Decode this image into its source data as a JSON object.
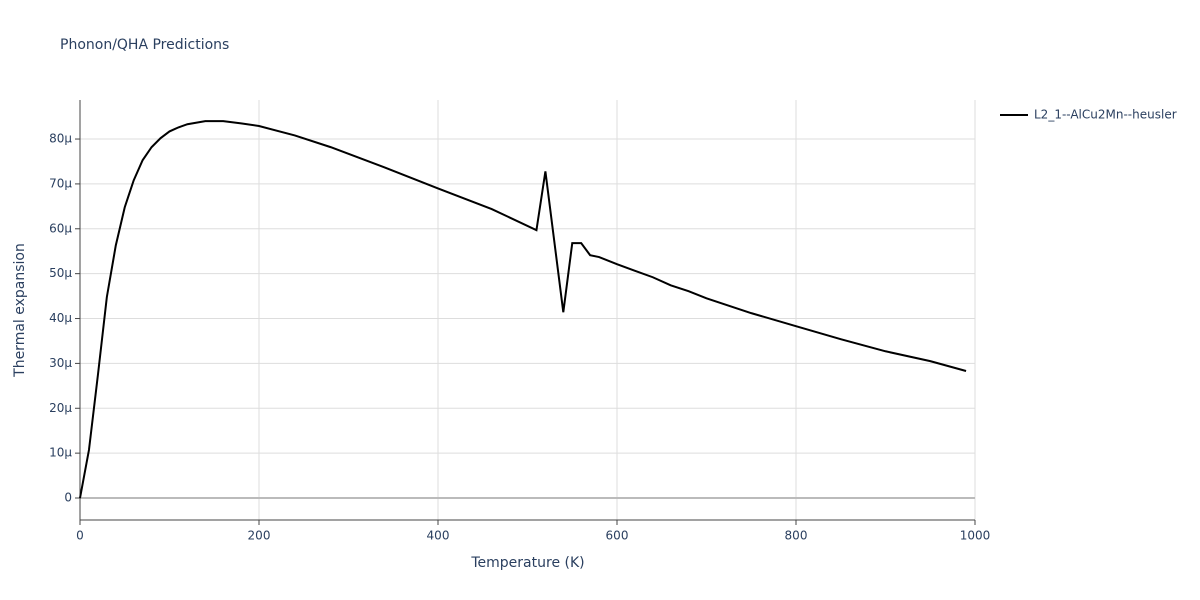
{
  "chart_data": {
    "type": "line",
    "title": "Phonon/QHA Predictions",
    "x_label": "Temperature (K)",
    "y_label": "Thermal expansion",
    "x": [
      0,
      10,
      20,
      30,
      40,
      50,
      60,
      70,
      80,
      90,
      100,
      110,
      120,
      140,
      160,
      180,
      200,
      240,
      280,
      340,
      400,
      460,
      510,
      520,
      540,
      550,
      560,
      570,
      580,
      600,
      640,
      660,
      680,
      700,
      750,
      800,
      850,
      900,
      950,
      990
    ],
    "series": [
      {
        "name": "L2_1--AlCu2Mn--heusler",
        "color": "#000000",
        "values": [
          0,
          1.07e-05,
          2.74e-05,
          4.48e-05,
          5.63e-05,
          6.48e-05,
          7.08e-05,
          7.53e-05,
          7.82e-05,
          8.02e-05,
          8.17e-05,
          8.26e-05,
          8.33e-05,
          8.4e-05,
          8.4e-05,
          8.35e-05,
          8.29e-05,
          8.08e-05,
          7.82e-05,
          7.37e-05,
          6.9e-05,
          6.44e-05,
          5.97e-05,
          7.28e-05,
          4.14e-05,
          5.68e-05,
          5.68e-05,
          5.41e-05,
          5.37e-05,
          5.21e-05,
          4.92e-05,
          4.74e-05,
          4.61e-05,
          4.45e-05,
          4.12e-05,
          3.83e-05,
          3.54e-05,
          3.27e-05,
          3.05e-05,
          2.83e-05
        ]
      }
    ],
    "xlim": [
      0,
      1000
    ],
    "xticks": [
      0,
      200,
      400,
      600,
      800,
      1000
    ],
    "ylim": [
      -4.9e-06,
      8.87e-05
    ],
    "yticks": [
      {
        "value": 0,
        "label": "0"
      },
      {
        "value": 1e-05,
        "label": "10μ"
      },
      {
        "value": 2e-05,
        "label": "20μ"
      },
      {
        "value": 3e-05,
        "label": "30μ"
      },
      {
        "value": 4e-05,
        "label": "40μ"
      },
      {
        "value": 5e-05,
        "label": "50μ"
      },
      {
        "value": 6e-05,
        "label": "60μ"
      },
      {
        "value": 7e-05,
        "label": "70μ"
      },
      {
        "value": 8e-05,
        "label": "80μ"
      }
    ],
    "grid": true,
    "legend": "right"
  }
}
